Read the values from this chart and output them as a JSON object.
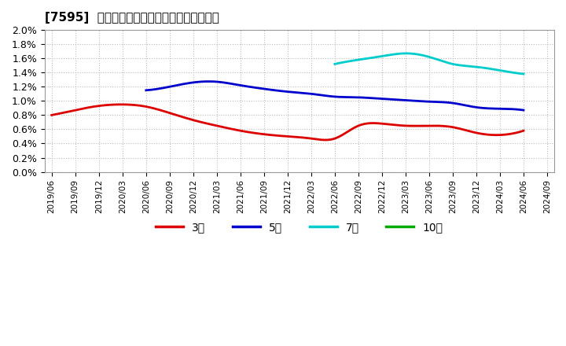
{
  "title": "[7595]  当期純利益マージンの標準偏差の推移",
  "ylim": [
    0.0,
    0.02
  ],
  "yticks": [
    0.0,
    0.002,
    0.004,
    0.006,
    0.008,
    0.01,
    0.012,
    0.014,
    0.016,
    0.018,
    0.02
  ],
  "ytick_labels": [
    "0.0%",
    "0.2%",
    "0.4%",
    "0.6%",
    "0.8%",
    "1.0%",
    "1.2%",
    "1.4%",
    "1.6%",
    "1.8%",
    "2.0%"
  ],
  "x_labels": [
    "2019/06",
    "2019/09",
    "2019/12",
    "2020/03",
    "2020/06",
    "2020/09",
    "2020/12",
    "2021/03",
    "2021/06",
    "2021/09",
    "2021/12",
    "2022/03",
    "2022/06",
    "2022/09",
    "2022/12",
    "2023/03",
    "2023/06",
    "2023/09",
    "2023/12",
    "2024/03",
    "2024/06",
    "2024/09"
  ],
  "series": {
    "3年": {
      "color": "#dd0000",
      "values": [
        0.008,
        0.0087,
        0.0093,
        0.0095,
        0.0092,
        0.0083,
        0.0073,
        0.0065,
        0.0058,
        0.0053,
        0.005,
        0.0047,
        0.0047,
        0.0065,
        0.0068,
        0.0065,
        0.0065,
        0.0063,
        0.0055,
        0.0052,
        0.0058,
        null
      ]
    },
    "5年": {
      "color": "#0000cc",
      "values": [
        null,
        null,
        null,
        null,
        0.0115,
        0.012,
        0.0126,
        0.0127,
        0.0122,
        0.0117,
        0.0113,
        0.011,
        0.0106,
        0.0105,
        0.0103,
        0.0101,
        0.0099,
        0.0097,
        0.0091,
        0.0089,
        0.0087,
        null
      ]
    },
    "7年": {
      "color": "#00cccc",
      "values": [
        null,
        null,
        null,
        null,
        null,
        null,
        null,
        null,
        null,
        null,
        null,
        null,
        0.0152,
        0.0158,
        0.0163,
        0.0167,
        0.0162,
        0.0152,
        0.0148,
        0.0143,
        0.0138,
        null
      ]
    },
    "10年": {
      "color": "#00aa00",
      "values": [
        null,
        null,
        null,
        null,
        null,
        null,
        null,
        null,
        null,
        null,
        null,
        null,
        null,
        null,
        null,
        null,
        null,
        null,
        null,
        null,
        null,
        null
      ]
    }
  },
  "legend_entries": [
    "3年",
    "5年",
    "7年",
    "10年"
  ],
  "legend_colors": [
    "#dd0000",
    "#0000cc",
    "#00cccc",
    "#00aa00"
  ],
  "background_color": "#ffffff",
  "grid_color": "#bbbbbb"
}
